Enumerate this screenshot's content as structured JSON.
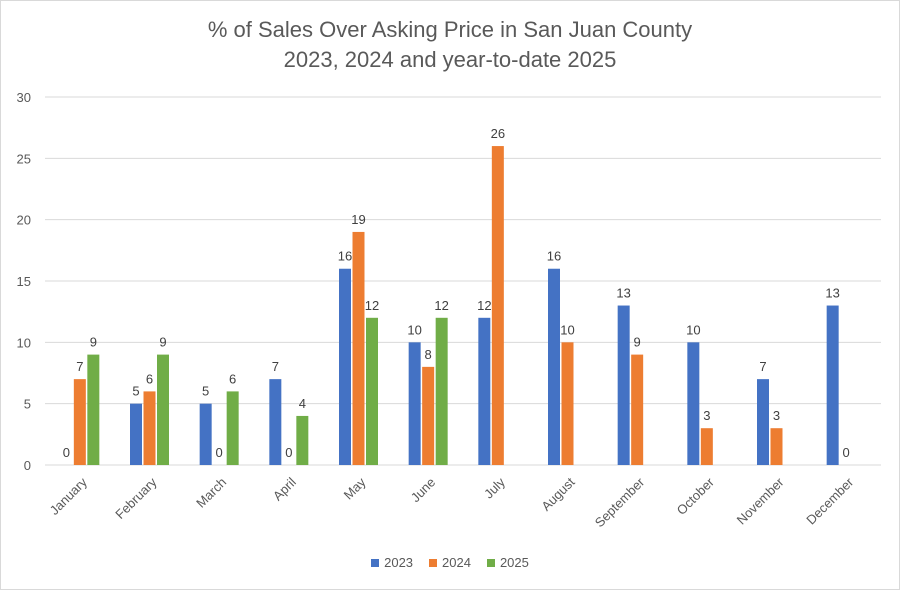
{
  "chart_data": {
    "type": "bar",
    "title": "% of Sales Over Asking Price in San Juan County",
    "subtitle": "2023, 2024 and year-to-date 2025",
    "categories": [
      "January",
      "February",
      "March",
      "April",
      "May",
      "June",
      "July",
      "August",
      "September",
      "October",
      "November",
      "December"
    ],
    "series": [
      {
        "name": "2023",
        "color": "#4472C4",
        "values": [
          0,
          5,
          5,
          7,
          16,
          10,
          12,
          16,
          13,
          10,
          7,
          13
        ]
      },
      {
        "name": "2024",
        "color": "#ED7D31",
        "values": [
          7,
          6,
          0,
          0,
          19,
          8,
          26,
          10,
          9,
          3,
          3,
          0
        ]
      },
      {
        "name": "2025",
        "color": "#70AD47",
        "values": [
          9,
          9,
          6,
          4,
          12,
          12,
          null,
          null,
          null,
          null,
          null,
          null
        ]
      }
    ],
    "ylim": [
      0,
      30
    ],
    "yticks": [
      0,
      5,
      10,
      15,
      20,
      25,
      30
    ],
    "grid": true,
    "legend": "bottom"
  }
}
